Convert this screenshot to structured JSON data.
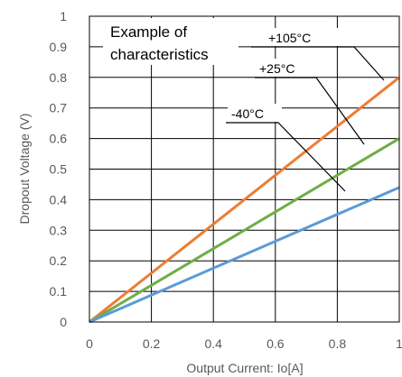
{
  "chart_data": {
    "type": "line",
    "title": "",
    "xlabel": "Output Current:  Io[A]",
    "ylabel": "Dropout Voltage (V)",
    "xlim": [
      0,
      1
    ],
    "ylim": [
      0,
      1
    ],
    "x_ticks": [
      "0",
      "0.2",
      "0.4",
      "0.6",
      "0.8",
      "1"
    ],
    "y_ticks": [
      "0",
      "0.1",
      "0.2",
      "0.3",
      "0.4",
      "0.5",
      "0.6",
      "0.7",
      "0.8",
      "0.9",
      "1"
    ],
    "grid": true,
    "annotation": [
      "Example of",
      "characteristics"
    ],
    "series": [
      {
        "name": "+105°C",
        "color": "#ED7D31",
        "x": [
          0,
          1
        ],
        "y": [
          0,
          0.8
        ]
      },
      {
        "name": "+25°C",
        "color": "#70AD47",
        "x": [
          0,
          1
        ],
        "y": [
          0,
          0.6
        ]
      },
      {
        "name": "-40°C",
        "color": "#5B9BD5",
        "x": [
          0,
          1
        ],
        "y": [
          0,
          0.44
        ]
      }
    ]
  }
}
